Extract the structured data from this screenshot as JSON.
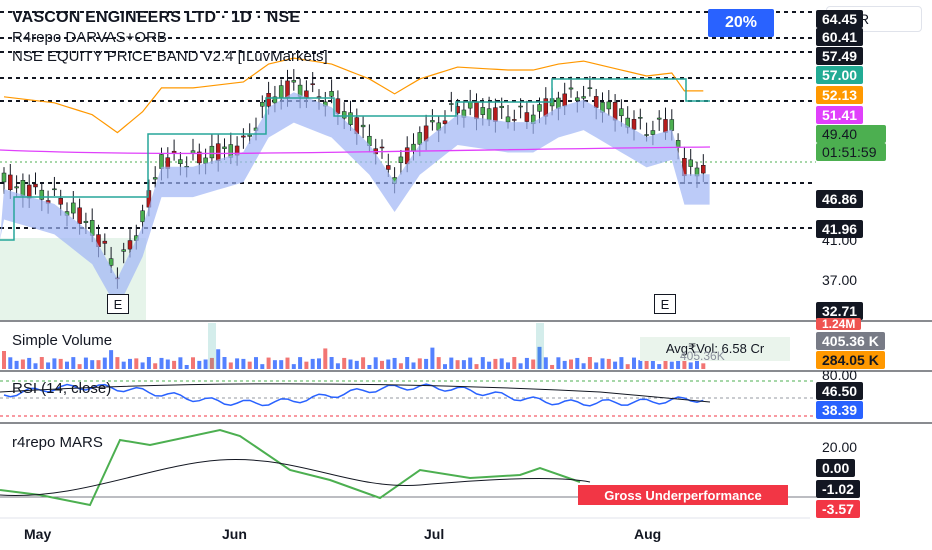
{
  "header": {
    "title": "VASCON ENGINEERS LTD · 1D · NSE",
    "indicator1": "R4repo DARVAS+ORB",
    "indicator2": "NSE EQUITY PRICE BAND V2.4 [ILuvMarkets]"
  },
  "toolbar": {
    "currency": "INR",
    "percent_badge": "20%"
  },
  "price_labels": [
    {
      "text": "64.45",
      "bg": "#131722",
      "fg": "#ffffff"
    },
    {
      "text": "60.41",
      "bg": "#131722",
      "fg": "#ffffff"
    },
    {
      "text": "57.49",
      "bg": "#131722",
      "fg": "#ffffff"
    },
    {
      "text": "57.00",
      "bg": "#22ab94",
      "fg": "#ffffff"
    },
    {
      "text": "52.13",
      "bg": "#ff9800",
      "fg": "#ffffff"
    },
    {
      "text": "51.41",
      "bg": "#e040fb",
      "fg": "#ffffff"
    },
    {
      "text": "49.40",
      "bg": "#4caf50",
      "fg": "#131722"
    },
    {
      "text": "01:51:59",
      "bg": "#4caf50",
      "fg": "#131722"
    },
    {
      "text": "46.86",
      "bg": "#131722",
      "fg": "#ffffff"
    },
    {
      "text": "41.96",
      "bg": "#131722",
      "fg": "#ffffff"
    },
    {
      "text": "32.71",
      "bg": "#131722",
      "fg": "#ffffff"
    }
  ],
  "price_ticks": [
    "41.00",
    "37.00"
  ],
  "volume": {
    "title": "Simple Volume",
    "top_label": "1.24M",
    "avg_vol": "Avg₹Vol: 6.58 Cr",
    "sub_value": "405.36K",
    "labels": [
      {
        "text": "405.36 K",
        "bg": "#787b86"
      },
      {
        "text": "284.05 K",
        "bg": "#ff9800"
      }
    ]
  },
  "rsi": {
    "title": "RSI (14, close)",
    "tick": "80.00",
    "labels": [
      {
        "text": "46.50",
        "bg": "#131722"
      },
      {
        "text": "38.39",
        "bg": "#2962ff"
      }
    ]
  },
  "mars": {
    "title": "r4repo MARS",
    "tick": "20.00",
    "labels": [
      {
        "text": "0.00",
        "bg": "#131722"
      },
      {
        "text": "-1.02",
        "bg": "#131722"
      },
      {
        "text": "-3.57",
        "bg": "#f23645"
      }
    ],
    "status": "Gross Underperformance"
  },
  "x_axis": [
    "May",
    "Jun",
    "Jul",
    "Aug"
  ],
  "earnings_marker": "E",
  "colors": {
    "up": "#26a69a",
    "down": "#ef5350",
    "body_up": "#4caf50",
    "body_down": "#b71c1c",
    "darvas": "#26a69a",
    "ema_orange": "#ff9800",
    "ma_magenta": "#e040fb",
    "cloud": "#9fb5f5",
    "rsi": "#2962ff"
  }
}
